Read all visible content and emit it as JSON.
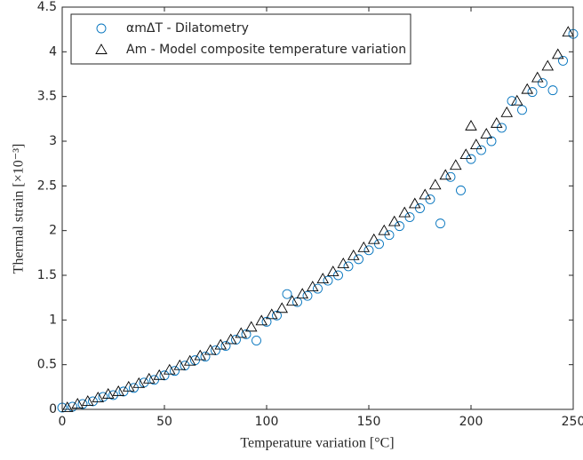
{
  "chart_data": {
    "type": "scatter",
    "xlabel": "Temperature variation [°C]",
    "ylabel": "Thermal strain [×10⁻³]",
    "xlim": [
      0,
      250
    ],
    "xticks": [
      0,
      50,
      100,
      150,
      200,
      250
    ],
    "ylim": [
      0,
      4.5
    ],
    "yticks": [
      0,
      0.5,
      1,
      1.5,
      2,
      2.5,
      3,
      3.5,
      4,
      4.5
    ],
    "legend": "upper left",
    "series": [
      {
        "name": "αmΔT - Dilatometry",
        "color": "#0072bd",
        "marker": "circle",
        "x": [
          0,
          5,
          10,
          15,
          20,
          25,
          30,
          35,
          40,
          45,
          50,
          55,
          60,
          65,
          70,
          75,
          80,
          85,
          90,
          95,
          100,
          105,
          110,
          115,
          120,
          125,
          130,
          135,
          140,
          145,
          150,
          155,
          160,
          165,
          170,
          175,
          180,
          185,
          190,
          195,
          200,
          205,
          210,
          215,
          220,
          225,
          230,
          235,
          240,
          245,
          250
        ],
        "values": [
          0.02,
          0.03,
          0.06,
          0.09,
          0.14,
          0.16,
          0.2,
          0.24,
          0.3,
          0.33,
          0.38,
          0.43,
          0.49,
          0.55,
          0.59,
          0.66,
          0.71,
          0.78,
          0.84,
          0.77,
          0.98,
          1.05,
          1.29,
          1.2,
          1.27,
          1.35,
          1.44,
          1.5,
          1.6,
          1.68,
          1.78,
          1.85,
          1.95,
          2.05,
          2.15,
          2.25,
          2.35,
          2.08,
          2.6,
          2.45,
          2.8,
          2.9,
          3.0,
          3.15,
          3.45,
          3.35,
          3.55,
          3.65,
          3.57,
          3.9,
          4.2
        ]
      },
      {
        "name": "Am - Model composite temperature variation",
        "color": "#000000",
        "marker": "triangle",
        "x": [
          2.5,
          7.5,
          12.5,
          17.5,
          22.5,
          27.5,
          32.5,
          37.5,
          42.5,
          47.5,
          52.5,
          57.5,
          62.5,
          67.5,
          72.5,
          77.5,
          82.5,
          87.5,
          92.5,
          97.5,
          102.5,
          107.5,
          112.5,
          117.5,
          122.5,
          127.5,
          132.5,
          137.5,
          142.5,
          147.5,
          152.5,
          157.5,
          162.5,
          167.5,
          172.5,
          177.5,
          182.5,
          187.5,
          192.5,
          197.5,
          202.5,
          207.5,
          212.5,
          217.5,
          222.5,
          227.5,
          232.5,
          237.5,
          242.5,
          247.5,
          200
        ],
        "values": [
          0.02,
          0.06,
          0.09,
          0.13,
          0.17,
          0.2,
          0.25,
          0.29,
          0.34,
          0.38,
          0.44,
          0.49,
          0.54,
          0.6,
          0.66,
          0.72,
          0.78,
          0.85,
          0.92,
          0.99,
          1.06,
          1.13,
          1.21,
          1.29,
          1.37,
          1.46,
          1.54,
          1.63,
          1.72,
          1.81,
          1.9,
          2.0,
          2.1,
          2.2,
          2.3,
          2.4,
          2.51,
          2.62,
          2.73,
          2.85,
          2.96,
          3.08,
          3.2,
          3.32,
          3.45,
          3.58,
          3.71,
          3.84,
          3.97,
          4.22,
          3.17
        ]
      }
    ]
  }
}
